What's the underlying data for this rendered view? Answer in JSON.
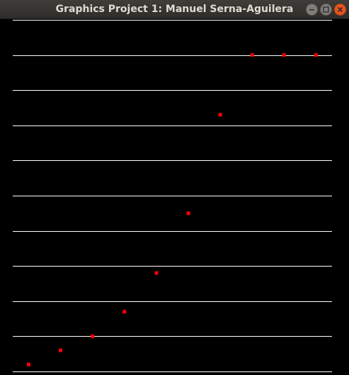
{
  "window": {
    "title": "Graphics Project 1: Manuel Serna-Aguilera",
    "buttons": {
      "minimize_icon": "minimize-icon",
      "maximize_icon": "maximize-icon",
      "close_icon": "close-icon"
    }
  },
  "colors": {
    "background": "#000000",
    "grid_line": "#ffffff",
    "point": "#ff0000",
    "close_button": "#e95420"
  },
  "chart_data": {
    "type": "scatter",
    "title": "",
    "xlabel": "",
    "ylabel": "",
    "grid": true,
    "xlim": [
      0,
      10
    ],
    "ylim": [
      0,
      10
    ],
    "grid_lines_y": [
      0,
      1,
      2,
      3,
      4,
      5,
      6,
      7,
      8,
      9,
      10
    ],
    "points": [
      {
        "x": 0.5,
        "y": 0.2
      },
      {
        "x": 1.5,
        "y": 0.6
      },
      {
        "x": 2.5,
        "y": 1.0
      },
      {
        "x": 3.5,
        "y": 1.7
      },
      {
        "x": 4.5,
        "y": 2.8
      },
      {
        "x": 5.5,
        "y": 4.5
      },
      {
        "x": 6.5,
        "y": 7.3
      },
      {
        "x": 7.5,
        "y": 9.0
      },
      {
        "x": 8.5,
        "y": 9.0
      },
      {
        "x": 9.5,
        "y": 9.0
      }
    ]
  }
}
